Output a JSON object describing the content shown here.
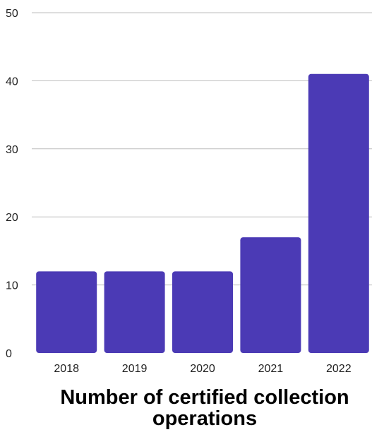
{
  "chart_data": {
    "type": "bar",
    "title": "Number of certified collection operations",
    "categories": [
      "2018",
      "2019",
      "2020",
      "2021",
      "2022"
    ],
    "values": [
      12,
      12,
      12,
      17,
      41
    ],
    "xlabel": "",
    "ylabel": "",
    "ylim": [
      0,
      50
    ],
    "yticks": [
      "0",
      "10",
      "20",
      "30",
      "40",
      "50"
    ],
    "grid": true,
    "bar_color": "#4b3ab5",
    "grid_color": "#bdbdbd"
  }
}
